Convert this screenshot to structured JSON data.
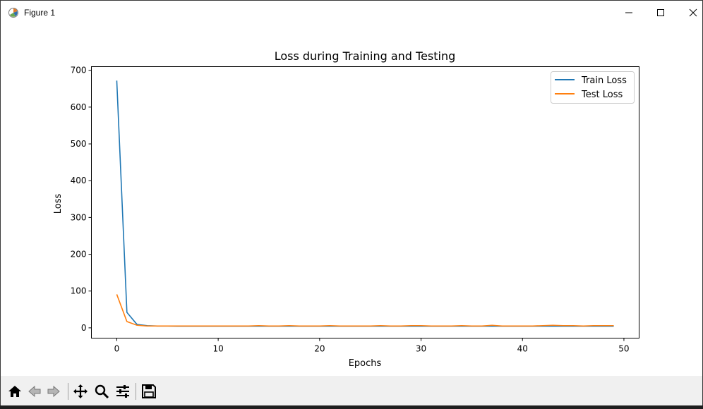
{
  "window": {
    "title": "Figure 1"
  },
  "toolbar": {
    "buttons": [
      {
        "icon": "home-icon"
      },
      {
        "icon": "back-arrow-icon"
      },
      {
        "icon": "forward-arrow-icon"
      },
      {
        "icon": "pan-icon"
      },
      {
        "icon": "zoom-icon"
      },
      {
        "icon": "configure-subplots-icon"
      },
      {
        "icon": "save-icon"
      }
    ]
  },
  "chart_data": {
    "type": "line",
    "title": "Loss during Training and Testing",
    "xlabel": "Epochs",
    "ylabel": "Loss",
    "xlim": [
      -2.5,
      51.5
    ],
    "ylim": [
      -28,
      710
    ],
    "xticks": [
      0,
      10,
      20,
      30,
      40,
      50
    ],
    "yticks": [
      0,
      100,
      200,
      300,
      400,
      500,
      600,
      700
    ],
    "grid": false,
    "legend": "top-right",
    "series": [
      {
        "name": "Train Loss",
        "color": "#1f77b4",
        "x": [
          0,
          1,
          2,
          3,
          4,
          5,
          6,
          7,
          8,
          9,
          10,
          11,
          12,
          13,
          14,
          15,
          16,
          17,
          18,
          19,
          20,
          21,
          22,
          23,
          24,
          25,
          26,
          27,
          28,
          29,
          30,
          31,
          32,
          33,
          34,
          35,
          36,
          37,
          38,
          39,
          40,
          41,
          42,
          43,
          44,
          45,
          46,
          47,
          48,
          49
        ],
        "y": [
          672,
          42,
          9,
          6,
          5,
          5,
          4.5,
          4.5,
          4.5,
          4.5,
          4.5,
          4.5,
          4.5,
          4.5,
          4.5,
          4.5,
          4.5,
          4.5,
          4.5,
          4.5,
          4.5,
          4.5,
          4.5,
          4.5,
          4.5,
          4.5,
          4.5,
          4.5,
          4.5,
          4.5,
          4.5,
          4.5,
          4.5,
          4.5,
          4.5,
          4.5,
          4.5,
          4.5,
          4.5,
          4.5,
          4.5,
          4.5,
          4.5,
          4.5,
          4.5,
          4.5,
          4.5,
          4.5,
          4.5,
          4.5
        ]
      },
      {
        "name": "Test Loss",
        "color": "#ff7f0e",
        "x": [
          0,
          1,
          2,
          3,
          4,
          5,
          6,
          7,
          8,
          9,
          10,
          11,
          12,
          13,
          14,
          15,
          16,
          17,
          18,
          19,
          20,
          21,
          22,
          23,
          24,
          25,
          26,
          27,
          28,
          29,
          30,
          31,
          32,
          33,
          34,
          35,
          36,
          37,
          38,
          39,
          40,
          41,
          42,
          43,
          44,
          45,
          46,
          47,
          48,
          49
        ],
        "y": [
          91,
          17,
          7,
          5,
          5,
          5,
          5,
          5,
          5,
          5,
          5,
          5,
          5,
          5,
          6,
          5,
          5,
          6,
          5,
          5,
          5,
          6,
          5,
          5,
          5,
          5,
          6,
          5,
          5,
          6,
          6,
          5,
          5,
          5,
          6,
          5,
          5,
          7,
          5,
          5,
          5,
          5,
          6,
          7,
          6,
          6,
          5,
          6,
          6,
          6
        ]
      }
    ]
  }
}
